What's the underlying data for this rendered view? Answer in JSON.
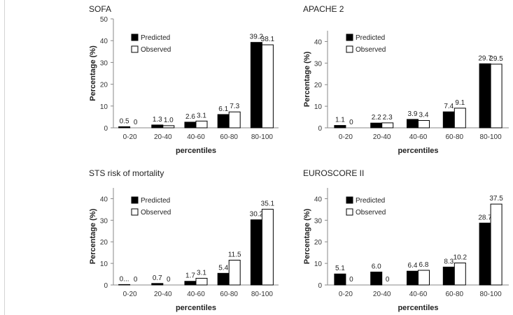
{
  "colors": {
    "predicted": "#000000",
    "observed": "#ffffff",
    "edge": "#000000",
    "axis": "#888888"
  },
  "chart_data": [
    {
      "type": "bar",
      "title": "SOFA",
      "xlabel": "percentiles",
      "ylabel": "Percentage (%)",
      "ylim": [
        0,
        50
      ],
      "yticks": [
        "0",
        "10",
        "20",
        "30",
        "40",
        "50"
      ],
      "categories": [
        "0-20",
        "20-40",
        "40-60",
        "60-80",
        "80-100"
      ],
      "legend": [
        "Predicted",
        "Observed"
      ],
      "series": [
        {
          "name": "Predicted",
          "values": [
            0.5,
            1.3,
            2.6,
            6.1,
            39.2
          ],
          "labels": [
            "0.5",
            "1.3",
            "2.6",
            "6.1",
            "39.2"
          ]
        },
        {
          "name": "Observed",
          "values": [
            0,
            1.0,
            3.1,
            7.3,
            38.1
          ],
          "labels": [
            "0",
            "1.0",
            "3.1",
            "7.3",
            "38.1"
          ]
        }
      ]
    },
    {
      "type": "bar",
      "title": "APACHE 2",
      "xlabel": "percentiles",
      "ylabel": "Percentage (%)",
      "ylim": [
        0,
        45
      ],
      "yticks": [
        "0",
        "10",
        "20",
        "30",
        "40"
      ],
      "categories": [
        "0-20",
        "20-40",
        "40-60",
        "60-80",
        "80-100"
      ],
      "legend": [
        "Predicted",
        "Observed"
      ],
      "series": [
        {
          "name": "Predicted",
          "values": [
            1.1,
            2.2,
            3.9,
            7.4,
            29.7
          ],
          "labels": [
            "1.1",
            "2.2",
            "3.9",
            "7.4",
            "29.7"
          ]
        },
        {
          "name": "Observed",
          "values": [
            0,
            2.3,
            3.4,
            9.1,
            29.5
          ],
          "labels": [
            "0",
            "2.3",
            "3.4",
            "9.1",
            "29.5"
          ]
        }
      ]
    },
    {
      "type": "bar",
      "title": "STS risk of mortality",
      "xlabel": "percentiles",
      "ylabel": "Percentage (%)",
      "ylim": [
        0,
        45
      ],
      "yticks": [
        "0",
        "10",
        "20",
        "30",
        "40"
      ],
      "categories": [
        "0-20",
        "20-40",
        "40-60",
        "60-80",
        "80-100"
      ],
      "legend": [
        "Predicted",
        "Observed"
      ],
      "series": [
        {
          "name": "Predicted",
          "values": [
            0.2,
            0.7,
            1.7,
            5.4,
            30.2
          ],
          "labels": [
            "0...",
            "0.7",
            "1.7",
            "5.4",
            "30.2"
          ]
        },
        {
          "name": "Observed",
          "values": [
            0,
            0,
            3.1,
            11.5,
            35.1
          ],
          "labels": [
            "0",
            "0",
            "3.1",
            "11.5",
            "35.1"
          ]
        }
      ]
    },
    {
      "type": "bar",
      "title": "EUROSCORE II",
      "xlabel": "percentiles",
      "ylabel": "Percentage (%)",
      "ylim": [
        0,
        45
      ],
      "yticks": [
        "0",
        "10",
        "20",
        "30",
        "40"
      ],
      "categories": [
        "0-20",
        "20-40",
        "40-60",
        "60-80",
        "80-100"
      ],
      "legend": [
        "Predicted",
        "Observed"
      ],
      "series": [
        {
          "name": "Predicted",
          "values": [
            5.1,
            6.0,
            6.4,
            8.3,
            28.7
          ],
          "labels": [
            "5.1",
            "6.0",
            "6.4",
            "8.3",
            "28.7"
          ]
        },
        {
          "name": "Observed",
          "values": [
            0,
            0,
            6.8,
            10.2,
            37.5
          ],
          "labels": [
            "0",
            "0",
            "6.8",
            "10.2",
            "37.5"
          ]
        }
      ]
    }
  ]
}
